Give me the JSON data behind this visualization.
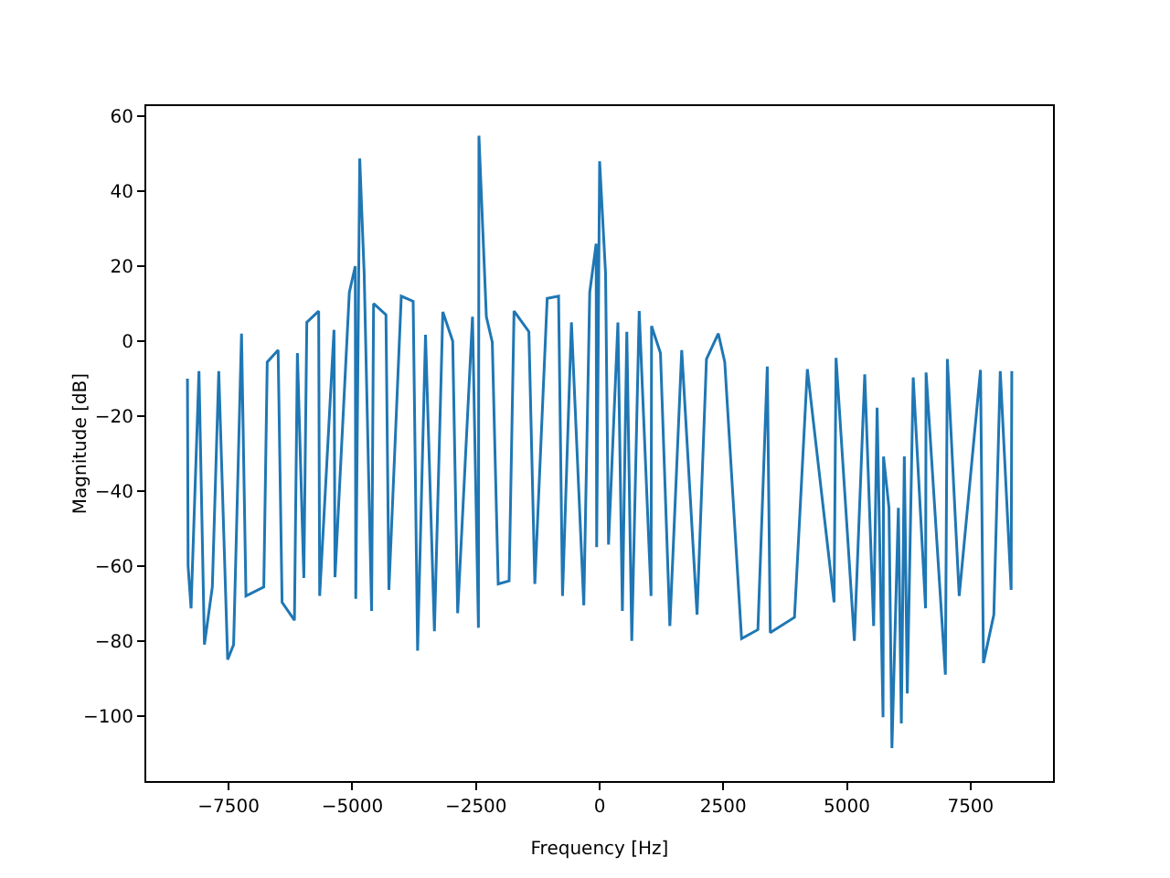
{
  "chart_data": {
    "type": "line",
    "xlabel": "Frequency [Hz]",
    "ylabel": "Magnitude [dB]",
    "series": [
      {
        "color": "#1f77b4",
        "x": [
          -8333,
          -8320,
          -8260,
          -8100,
          -7990,
          -7830,
          -7700,
          -7520,
          -7400,
          -7240,
          -7150,
          -6790,
          -6720,
          -6500,
          -6420,
          -6170,
          -6110,
          -5980,
          -5920,
          -5680,
          -5660,
          -5370,
          -5350,
          -5060,
          -4940,
          -4930,
          -4850,
          -4760,
          -4610,
          -4570,
          -4320,
          -4260,
          -4010,
          -3770,
          -3680,
          -3520,
          -3340,
          -3170,
          -2970,
          -2870,
          -2570,
          -2450,
          -2440,
          -2290,
          -2170,
          -2050,
          -1830,
          -1730,
          -1430,
          -1310,
          -1060,
          -830,
          -750,
          -570,
          -320,
          -200,
          -70,
          -60,
          0,
          120,
          180,
          370,
          460,
          550,
          650,
          800,
          1040,
          1050,
          1230,
          1420,
          1660,
          1970,
          2160,
          2400,
          2530,
          2870,
          3200,
          3390,
          3450,
          3940,
          4200,
          4740,
          4780,
          5150,
          5360,
          5540,
          5610,
          5730,
          5740,
          5850,
          5910,
          6040,
          6100,
          6160,
          6220,
          6340,
          6590,
          6600,
          6990,
          7030,
          7270,
          7700,
          7760,
          7970,
          8100,
          8320,
          8333
        ],
        "values": [
          -10,
          -60,
          -71.3,
          -8,
          -81,
          -65.6,
          -8,
          -85,
          -81,
          2,
          -68,
          -65.6,
          -5.6,
          -2.4,
          -69.7,
          -74.5,
          -3.2,
          -63.2,
          5,
          8,
          -68,
          3,
          -63,
          13,
          20,
          -68.8,
          48.7,
          18,
          -72,
          10,
          7,
          -66.4,
          12,
          10.6,
          -82.6,
          1.7,
          -77.4,
          7.8,
          0,
          -72.6,
          6.5,
          -76.5,
          54.8,
          6.5,
          -0.3,
          -64.8,
          -64,
          8,
          2.5,
          -64.8,
          11.4,
          12,
          -68,
          5,
          -70.5,
          13,
          26,
          -55,
          48,
          18,
          -54.3,
          5,
          -72,
          2.5,
          -80,
          8,
          -68,
          4,
          -3.2,
          -76,
          -2.4,
          -73,
          -4.8,
          2,
          -5.6,
          -79.4,
          -77,
          -6.8,
          -77.8,
          -73.7,
          -7.5,
          -69.7,
          -4.5,
          -80,
          -8.9,
          -76,
          -17.8,
          -100.4,
          -30.8,
          -44.5,
          -108.6,
          -44.5,
          -102,
          -30.8,
          -94,
          -9.7,
          -71.3,
          -8.4,
          -89,
          -4.8,
          -68,
          -7.7,
          -85.9,
          -73,
          -8,
          -66.4,
          -8
        ]
      }
    ],
    "xlim": [
      -9166,
      9166
    ],
    "xticks": [
      {
        "value": -7500,
        "label": "−7500"
      },
      {
        "value": -5000,
        "label": "−5000"
      },
      {
        "value": -2500,
        "label": "−2500"
      },
      0,
      2500,
      5000,
      7500
    ],
    "ylim": [
      -117.4,
      62.7
    ],
    "yticks": [
      {
        "value": -100,
        "label": "−100"
      },
      {
        "value": -80,
        "label": "−80"
      },
      {
        "value": -60,
        "label": "−60"
      },
      {
        "value": -40,
        "label": "−40"
      },
      {
        "value": -20,
        "label": "−20"
      },
      0,
      20,
      40,
      60
    ],
    "grid": false,
    "marker": "none",
    "line_style": "solid"
  }
}
